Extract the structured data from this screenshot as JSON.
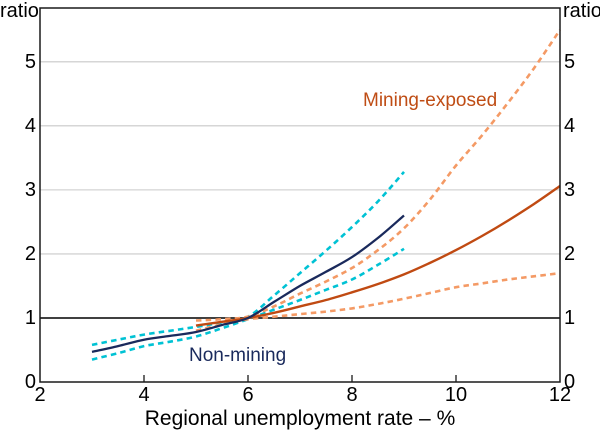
{
  "figure": {
    "y_axis_unit_left": "ratio",
    "y_axis_unit_right": "ratio",
    "x_axis_title": "Regional unemployment rate – %",
    "annotations": [
      {
        "text": "Mining-exposed",
        "color": "#bf4d15"
      },
      {
        "text": "Non-mining",
        "color": "#1a2a5c"
      }
    ],
    "colors": {
      "non_mining_line": "#1a2a5c",
      "non_mining_band": "#00c2d4",
      "mining_line": "#c04a12",
      "mining_band": "#f49a65",
      "gridline": "#c9c9c9",
      "reference_line": "#000000",
      "frame": "#1a1a1a"
    }
  },
  "chart_data": {
    "type": "line",
    "title": "",
    "xlabel": "Regional unemployment rate – %",
    "ylabel_left": "ratio",
    "ylabel_right": "ratio",
    "xlim": [
      2,
      12
    ],
    "ylim": [
      0,
      5.84
    ],
    "x_ticks": [
      2,
      4,
      6,
      8,
      10,
      12
    ],
    "y_ticks": [
      0,
      1,
      2,
      3,
      4,
      5
    ],
    "grid": true,
    "reference_line_y": 1,
    "legend_position": "inline-annotations",
    "series": [
      {
        "name": "Non-mining upper band",
        "group": "Non-mining",
        "style": "dashed",
        "color": "#00c2d4",
        "width": 2.6,
        "points": [
          [
            3,
            0.58
          ],
          [
            3.5,
            0.66
          ],
          [
            4,
            0.74
          ],
          [
            4.5,
            0.8
          ],
          [
            5,
            0.86
          ],
          [
            5.5,
            0.93
          ],
          [
            6,
            1.02
          ],
          [
            6.5,
            1.35
          ],
          [
            7,
            1.7
          ],
          [
            7.5,
            2.05
          ],
          [
            8,
            2.42
          ],
          [
            8.5,
            2.82
          ],
          [
            9,
            3.28
          ]
        ]
      },
      {
        "name": "Non-mining lower band",
        "group": "Non-mining",
        "style": "dashed",
        "color": "#00c2d4",
        "width": 2.6,
        "points": [
          [
            3,
            0.35
          ],
          [
            3.5,
            0.45
          ],
          [
            4,
            0.56
          ],
          [
            4.5,
            0.63
          ],
          [
            5,
            0.71
          ],
          [
            5.5,
            0.84
          ],
          [
            6,
            0.98
          ],
          [
            6.5,
            1.13
          ],
          [
            7,
            1.28
          ],
          [
            7.5,
            1.44
          ],
          [
            8,
            1.6
          ],
          [
            8.5,
            1.83
          ],
          [
            9,
            2.08
          ]
        ]
      },
      {
        "name": "Mining-exposed upper band",
        "group": "Mining-exposed",
        "style": "dashed",
        "color": "#f49a65",
        "width": 2.6,
        "points": [
          [
            5,
            0.96
          ],
          [
            5.5,
            0.98
          ],
          [
            6,
            1.02
          ],
          [
            6.5,
            1.18
          ],
          [
            7,
            1.38
          ],
          [
            7.5,
            1.57
          ],
          [
            8,
            1.78
          ],
          [
            8.5,
            2.06
          ],
          [
            9,
            2.4
          ],
          [
            9.5,
            2.85
          ],
          [
            10,
            3.38
          ],
          [
            10.5,
            3.85
          ],
          [
            11,
            4.36
          ],
          [
            11.5,
            4.9
          ],
          [
            12,
            5.5
          ]
        ]
      },
      {
        "name": "Mining-exposed lower band",
        "group": "Mining-exposed",
        "style": "dashed",
        "color": "#f49a65",
        "width": 2.6,
        "points": [
          [
            5,
            0.8
          ],
          [
            5.5,
            0.9
          ],
          [
            6,
            0.98
          ],
          [
            6.5,
            1.02
          ],
          [
            7,
            1.06
          ],
          [
            7.5,
            1.1
          ],
          [
            8,
            1.15
          ],
          [
            8.5,
            1.22
          ],
          [
            9,
            1.3
          ],
          [
            9.5,
            1.39
          ],
          [
            10,
            1.48
          ],
          [
            10.5,
            1.54
          ],
          [
            11,
            1.6
          ],
          [
            11.5,
            1.65
          ],
          [
            12,
            1.7
          ]
        ]
      },
      {
        "name": "Mining-exposed",
        "group": "Mining-exposed",
        "style": "solid",
        "color": "#c04a12",
        "width": 2.4,
        "points": [
          [
            5,
            0.88
          ],
          [
            5.5,
            0.94
          ],
          [
            6,
            1.0
          ],
          [
            6.5,
            1.08
          ],
          [
            7,
            1.18
          ],
          [
            7.5,
            1.28
          ],
          [
            8,
            1.4
          ],
          [
            8.5,
            1.53
          ],
          [
            9,
            1.68
          ],
          [
            9.5,
            1.86
          ],
          [
            10,
            2.06
          ],
          [
            10.5,
            2.28
          ],
          [
            11,
            2.52
          ],
          [
            11.5,
            2.78
          ],
          [
            12,
            3.06
          ]
        ]
      },
      {
        "name": "Non-mining",
        "group": "Non-mining",
        "style": "solid",
        "color": "#1a2a5c",
        "width": 2.3,
        "points": [
          [
            3,
            0.47
          ],
          [
            3.5,
            0.56
          ],
          [
            4,
            0.66
          ],
          [
            4.5,
            0.72
          ],
          [
            5,
            0.78
          ],
          [
            5.5,
            0.89
          ],
          [
            6,
            1.0
          ],
          [
            6.5,
            1.25
          ],
          [
            7,
            1.5
          ],
          [
            7.5,
            1.72
          ],
          [
            8,
            1.95
          ],
          [
            8.5,
            2.25
          ],
          [
            9,
            2.6
          ]
        ]
      }
    ]
  }
}
